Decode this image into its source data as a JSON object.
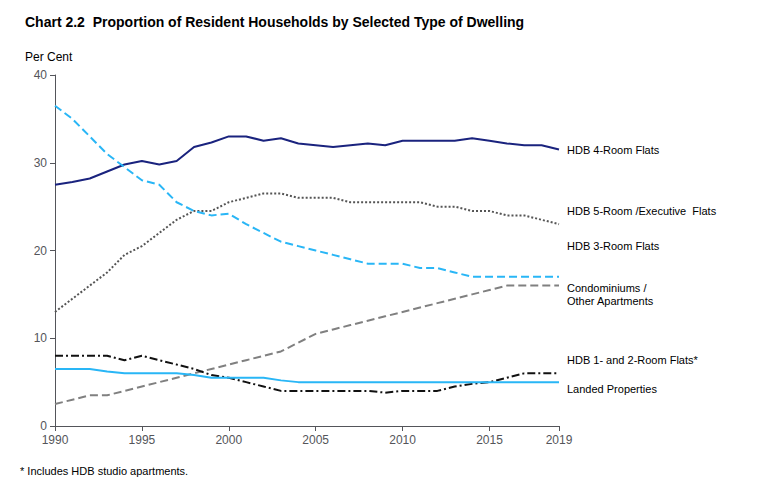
{
  "chart_data": {
    "type": "line",
    "title": "Chart 2.2  Proportion of Resident Households by Selected Type of Dwelling",
    "y_label": "Per Cent",
    "footnote": "* Includes HDB studio apartments.",
    "x": [
      1990,
      1991,
      1992,
      1993,
      1994,
      1995,
      1996,
      1997,
      1998,
      1999,
      2000,
      2001,
      2002,
      2003,
      2004,
      2005,
      2006,
      2007,
      2008,
      2009,
      2010,
      2011,
      2012,
      2013,
      2014,
      2015,
      2016,
      2017,
      2018,
      2019
    ],
    "xlim": [
      1990,
      2019
    ],
    "xticks": [
      1990,
      1995,
      2000,
      2005,
      2010,
      2015,
      2019
    ],
    "ylim": [
      0,
      40
    ],
    "yticks": [
      0,
      10,
      20,
      30,
      40
    ],
    "grid": false,
    "series": [
      {
        "name": "HDB 4-Room Flats",
        "color": "#1a237e",
        "line_style": "solid",
        "values": [
          27.5,
          27.8,
          28.2,
          29.0,
          29.8,
          30.2,
          29.8,
          30.2,
          31.8,
          32.3,
          33.0,
          33.0,
          32.5,
          32.8,
          32.2,
          32.0,
          31.8,
          32.0,
          32.2,
          32.0,
          32.5,
          32.5,
          32.5,
          32.5,
          32.8,
          32.5,
          32.2,
          32.0,
          32.0,
          31.5
        ]
      },
      {
        "name": "HDB 5-Room / Executive Flats",
        "color": "#555555",
        "line_style": "dotted",
        "values": [
          13.0,
          14.5,
          16.0,
          17.5,
          19.5,
          20.5,
          22.0,
          23.5,
          24.5,
          24.5,
          25.5,
          26.0,
          26.5,
          26.5,
          26.0,
          26.0,
          26.0,
          25.5,
          25.5,
          25.5,
          25.5,
          25.5,
          25.0,
          25.0,
          24.5,
          24.5,
          24.0,
          24.0,
          23.5,
          23.0
        ]
      },
      {
        "name": "HDB 3-Room Flats",
        "color": "#29b6f6",
        "line_style": "dashed",
        "values": [
          36.5,
          35.0,
          33.0,
          31.0,
          29.5,
          28.0,
          27.5,
          25.5,
          24.5,
          24.0,
          24.2,
          23.0,
          22.0,
          21.0,
          20.5,
          20.0,
          19.5,
          19.0,
          18.5,
          18.5,
          18.5,
          18.0,
          18.0,
          17.5,
          17.0,
          17.0,
          17.0,
          17.0,
          17.0,
          17.0
        ]
      },
      {
        "name": "Condominiums / Other Apartments",
        "color": "#808080",
        "line_style": "dashed",
        "values": [
          2.5,
          3.0,
          3.5,
          3.5,
          4.0,
          4.5,
          5.0,
          5.5,
          6.0,
          6.5,
          7.0,
          7.5,
          8.0,
          8.5,
          9.5,
          10.5,
          11.0,
          11.5,
          12.0,
          12.5,
          13.0,
          13.5,
          14.0,
          14.5,
          15.0,
          15.5,
          16.0,
          16.0,
          16.0,
          16.0
        ]
      },
      {
        "name": "HDB 1- and 2-Room Flats*",
        "color": "#111111",
        "line_style": "dashdot",
        "values": [
          8.0,
          8.0,
          8.0,
          8.0,
          7.5,
          8.0,
          7.5,
          7.0,
          6.5,
          5.8,
          5.5,
          5.0,
          4.5,
          4.0,
          4.0,
          4.0,
          4.0,
          4.0,
          4.0,
          3.8,
          4.0,
          4.0,
          4.0,
          4.5,
          4.8,
          5.0,
          5.5,
          6.0,
          6.0,
          6.0
        ]
      },
      {
        "name": "Landed Properties",
        "color": "#29b6f6",
        "line_style": "solid",
        "values": [
          6.5,
          6.5,
          6.5,
          6.2,
          6.0,
          6.0,
          6.0,
          6.0,
          5.8,
          5.5,
          5.5,
          5.5,
          5.5,
          5.2,
          5.0,
          5.0,
          5.0,
          5.0,
          5.0,
          5.0,
          5.0,
          5.0,
          5.0,
          5.0,
          5.0,
          5.0,
          5.0,
          5.0,
          5.0,
          5.0
        ]
      }
    ],
    "annotations": [
      {
        "label": "HDB 4-Room Flats",
        "y": 31.5
      },
      {
        "label": "HDB 5-Room /Executive  Flats",
        "y": 24.5
      },
      {
        "label": "HDB 3-Room Flats",
        "y": 20.5
      },
      {
        "label": "Condominiums /\nOther Apartments",
        "y": 15.0
      },
      {
        "label": "HDB 1- and 2-Room Flats*",
        "y": 7.5
      },
      {
        "label": "Landed Properties",
        "y": 4.2
      }
    ]
  }
}
